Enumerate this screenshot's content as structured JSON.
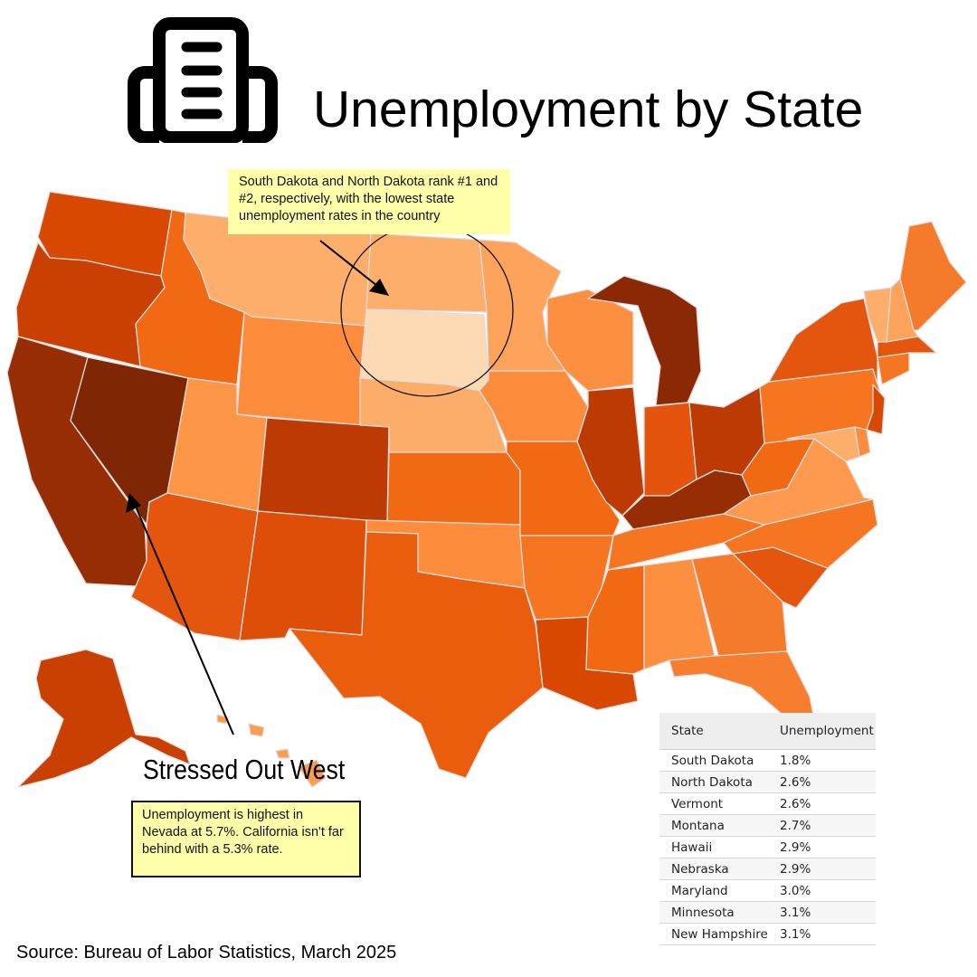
{
  "title": "Unemployment by State",
  "header_icon": "building-icon",
  "colors": {
    "scale_lowest": "#fdd9b4",
    "scale_low": "#fdae6b",
    "scale_mid_low": "#fd8d3c",
    "scale_mid": "#f16913",
    "scale_mid_high": "#e4550e",
    "scale_high": "#bf3a04",
    "scale_highest": "#7f2704",
    "note_background": "#ffffaa"
  },
  "map": {
    "states": [
      {
        "name": "Washington",
        "color": "#d94801"
      },
      {
        "name": "Oregon",
        "color": "#c94002"
      },
      {
        "name": "California",
        "color": "#962d03"
      },
      {
        "name": "Nevada",
        "color": "#7f2704"
      },
      {
        "name": "Idaho",
        "color": "#f16913"
      },
      {
        "name": "Montana",
        "color": "#fdae6b"
      },
      {
        "name": "Wyoming",
        "color": "#fd8d3c"
      },
      {
        "name": "Utah",
        "color": "#fd9647"
      },
      {
        "name": "Arizona",
        "color": "#e4550e"
      },
      {
        "name": "Colorado",
        "color": "#bd3a03"
      },
      {
        "name": "New Mexico",
        "color": "#de4e08"
      },
      {
        "name": "North Dakota",
        "color": "#fdae6b"
      },
      {
        "name": "South Dakota",
        "color": "#fdd9b4"
      },
      {
        "name": "Nebraska",
        "color": "#fdad6a"
      },
      {
        "name": "Kansas",
        "color": "#f16913"
      },
      {
        "name": "Oklahoma",
        "color": "#fd8d3c"
      },
      {
        "name": "Texas",
        "color": "#e95d0d"
      },
      {
        "name": "Minnesota",
        "color": "#fda35c"
      },
      {
        "name": "Iowa",
        "color": "#fd8d3c"
      },
      {
        "name": "Missouri",
        "color": "#f16913"
      },
      {
        "name": "Arkansas",
        "color": "#f57520"
      },
      {
        "name": "Louisiana",
        "color": "#d94801"
      },
      {
        "name": "Wisconsin",
        "color": "#fd9040"
      },
      {
        "name": "Illinois",
        "color": "#bd3a03"
      },
      {
        "name": "Michigan",
        "color": "#8b2904"
      },
      {
        "name": "Indiana",
        "color": "#e5540d"
      },
      {
        "name": "Ohio",
        "color": "#bd3a03"
      },
      {
        "name": "Kentucky",
        "color": "#962d03"
      },
      {
        "name": "Tennessee",
        "color": "#f57520"
      },
      {
        "name": "Mississippi",
        "color": "#f16913"
      },
      {
        "name": "Alabama",
        "color": "#fd9040"
      },
      {
        "name": "Georgia",
        "color": "#f57a29"
      },
      {
        "name": "Florida",
        "color": "#f67e2e"
      },
      {
        "name": "South Carolina",
        "color": "#e4550e"
      },
      {
        "name": "North Carolina",
        "color": "#f57520"
      },
      {
        "name": "Virginia",
        "color": "#fd9a50"
      },
      {
        "name": "West Virginia",
        "color": "#f16913"
      },
      {
        "name": "Pennsylvania",
        "color": "#f57520"
      },
      {
        "name": "New York",
        "color": "#e4550e"
      },
      {
        "name": "New Jersey",
        "color": "#d94801"
      },
      {
        "name": "Maryland",
        "color": "#fdae6b"
      },
      {
        "name": "Delaware",
        "color": "#fd8d3c"
      },
      {
        "name": "Connecticut",
        "color": "#f57520"
      },
      {
        "name": "Massachusetts",
        "color": "#e4550e"
      },
      {
        "name": "Vermont",
        "color": "#fdae6b"
      },
      {
        "name": "New Hampshire",
        "color": "#fda35c"
      },
      {
        "name": "Maine",
        "color": "#f57a29"
      },
      {
        "name": "Alaska",
        "color": "#c94002"
      },
      {
        "name": "Hawaii",
        "color": "#fd9b52"
      }
    ]
  },
  "annotations": {
    "top_note": "South Dakota and North Dakota rank #1 and #2, respectively, with the lowest state unemployment rates in the country",
    "callout_title": "Stressed Out West",
    "bottom_note": "Unemployment is highest in Nevada at 5.7%. California isn't far behind with a 5.3% rate."
  },
  "table": {
    "headers": [
      "State",
      "Unemployment"
    ],
    "rows": [
      [
        "South Dakota",
        "1.8%"
      ],
      [
        "North Dakota",
        "2.6%"
      ],
      [
        "Vermont",
        "2.6%"
      ],
      [
        "Montana",
        "2.7%"
      ],
      [
        "Hawaii",
        "2.9%"
      ],
      [
        "Nebraska",
        "2.9%"
      ],
      [
        "Maryland",
        "3.0%"
      ],
      [
        "Minnesota",
        "3.1%"
      ],
      [
        "New Hampshire",
        "3.1%"
      ]
    ]
  },
  "source": "Source: Bureau of Labor Statistics, March 2025"
}
